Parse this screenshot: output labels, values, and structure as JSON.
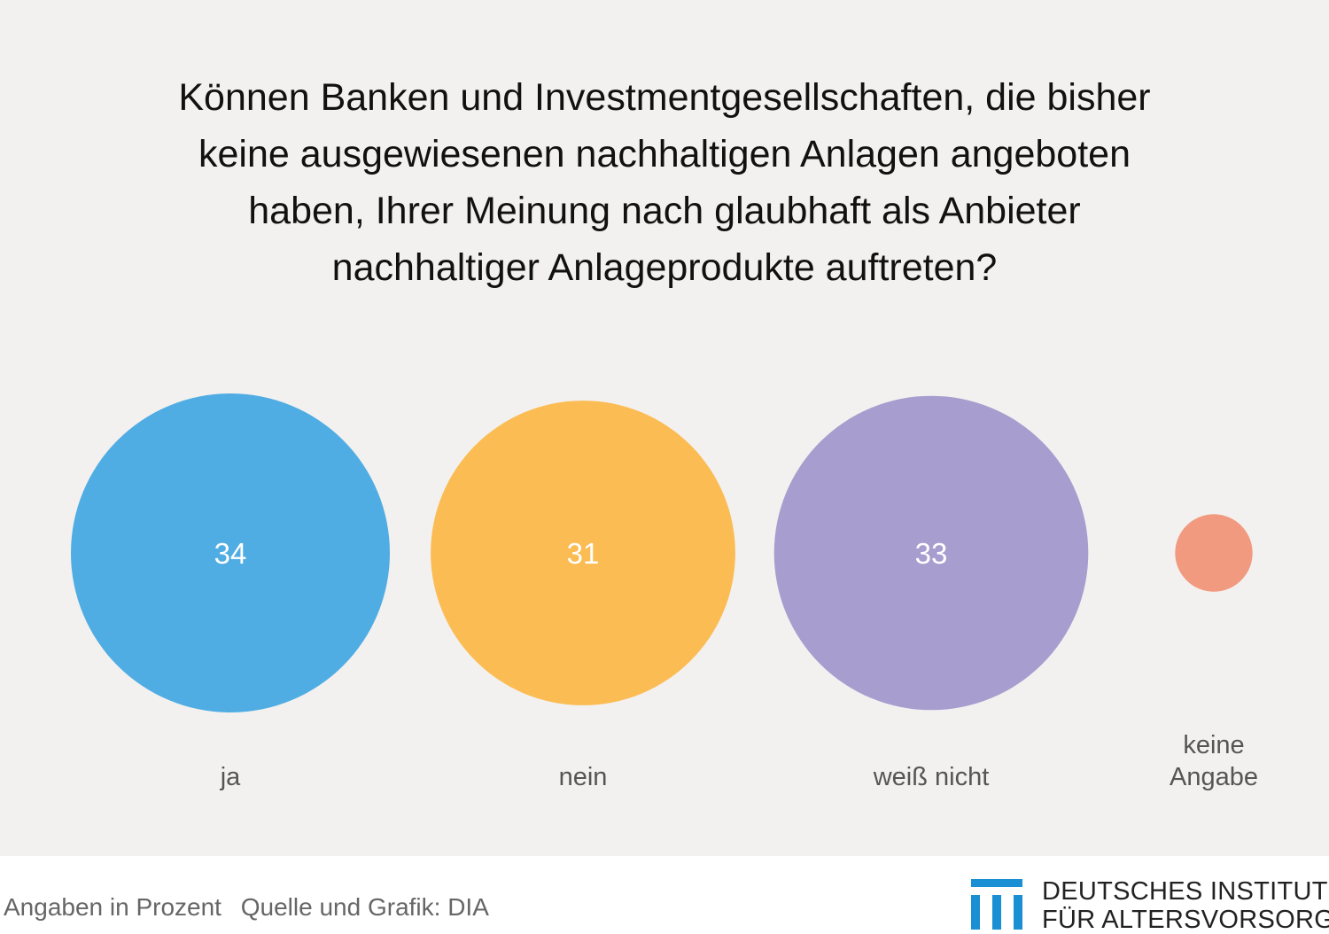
{
  "title_lines": [
    "Können Banken und Investmentgesellschaften, die bisher",
    "keine ausgewiesenen nachhaltigen Anlagen angeboten",
    "haben, Ihrer Meinung nach glaubhaft als Anbieter",
    "nachhaltiger Anlageprodukte auftreten?"
  ],
  "chart_data": {
    "type": "bubble",
    "categories": [
      [
        "ja"
      ],
      [
        "nein"
      ],
      [
        "weiß nicht"
      ],
      [
        "keine",
        "Angabe"
      ]
    ],
    "values": [
      34,
      31,
      33,
      2
    ],
    "colors": [
      "#50ade3",
      "#fbbc53",
      "#a79ecf",
      "#f19a80"
    ],
    "value_label_colors": [
      "#ffffff",
      "#ffffff",
      "#ffffff",
      "#f19a80"
    ],
    "unit": "Angaben in Prozent"
  },
  "footer": {
    "note": "Angaben in Prozent",
    "source": "Quelle und Grafik: DIA"
  },
  "logo": {
    "line1": "DEUTSCHES INSTITUT",
    "line2": "FÜR ALTERSVORSORGE",
    "color": "#1a8fd3"
  }
}
